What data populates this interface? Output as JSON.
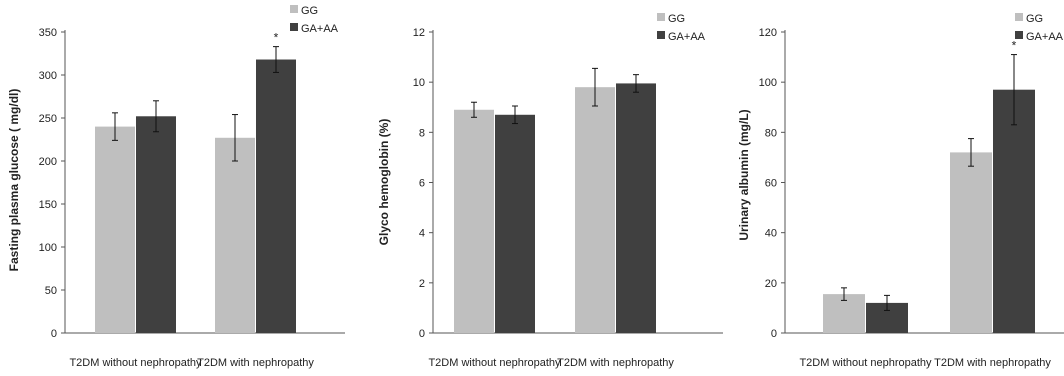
{
  "chart_data": [
    {
      "type": "bar",
      "ylabel": "Fasting plasma glucose ( mg/dl)",
      "ylim": [
        0,
        350
      ],
      "ytick_step": 50,
      "categories": [
        "T2DM without nephropathy",
        "T2DM with nephropathy"
      ],
      "series": [
        {
          "name": "GG",
          "values": [
            240,
            227
          ],
          "errors": [
            16,
            27
          ]
        },
        {
          "name": "GA+AA",
          "values": [
            252,
            318
          ],
          "errors": [
            18,
            15
          ]
        }
      ],
      "annotations": [
        {
          "text": "*",
          "category": 1,
          "series": 1
        }
      ],
      "legend": "top-right",
      "grid": false
    },
    {
      "type": "bar",
      "ylabel": "Glyco hemoglobin (%)",
      "ylim": [
        0,
        12
      ],
      "ytick_step": 2,
      "categories": [
        "T2DM without nephropathy",
        "T2DM with nephropathy"
      ],
      "series": [
        {
          "name": "GG",
          "values": [
            8.9,
            9.8
          ],
          "errors": [
            0.3,
            0.75
          ]
        },
        {
          "name": "GA+AA",
          "values": [
            8.7,
            9.95
          ],
          "errors": [
            0.35,
            0.35
          ]
        }
      ],
      "annotations": [],
      "legend": "top-right",
      "grid": false
    },
    {
      "type": "bar",
      "ylabel": "Urinary albumin (mg/L)",
      "ylim": [
        0,
        120
      ],
      "ytick_step": 20,
      "categories": [
        "T2DM without nephropathy",
        "T2DM with nephropathy"
      ],
      "series": [
        {
          "name": "GG",
          "values": [
            15.5,
            72
          ],
          "errors": [
            2.5,
            5.5
          ]
        },
        {
          "name": "GA+AA",
          "values": [
            12,
            97
          ],
          "errors": [
            3,
            14
          ]
        }
      ],
      "annotations": [
        {
          "text": "*",
          "category": 1,
          "series": 1
        }
      ],
      "legend": "top-right",
      "grid": false
    }
  ],
  "colors": {
    "GG": "#bfbfbf",
    "GA+AA": "#404040",
    "axis": "#555555",
    "errorbar": "#111111"
  }
}
